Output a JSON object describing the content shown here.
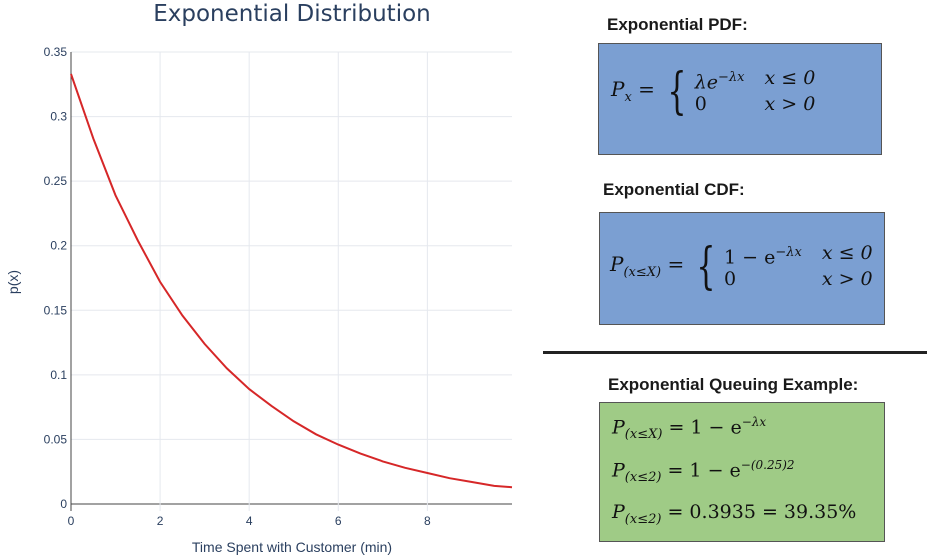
{
  "chart_data": {
    "type": "line",
    "title": "Exponential Distribution",
    "xlabel": "Time Spent with Customer (min)",
    "ylabel": "p(x)",
    "xlim": [
      0,
      9.9
    ],
    "ylim": [
      0,
      0.35
    ],
    "x_ticks": [
      "0",
      "2",
      "4",
      "6",
      "8"
    ],
    "y_ticks": [
      "0",
      "0.05",
      "0.1",
      "0.15",
      "0.2",
      "0.25",
      "0.3",
      "0.35"
    ],
    "grid": true,
    "series": [
      {
        "color": "#d62728",
        "x": [
          0,
          0.5,
          1,
          1.5,
          2,
          2.5,
          3,
          3.5,
          4,
          4.5,
          5,
          5.5,
          6,
          6.5,
          7,
          7.5,
          8,
          8.5,
          9,
          9.5,
          9.9
        ],
        "y": [
          0.333,
          0.283,
          0.239,
          0.204,
          0.172,
          0.146,
          0.124,
          0.105,
          0.089,
          0.076,
          0.064,
          0.054,
          0.046,
          0.039,
          0.033,
          0.028,
          0.024,
          0.02,
          0.017,
          0.014,
          0.013
        ]
      }
    ]
  },
  "panels": {
    "pdf": {
      "heading": "Exponential PDF:",
      "lhs": "P",
      "lhs_sub": "x",
      "row1_expr": "λe",
      "row1_sup": "−λx",
      "row1_cond": "x ≤ 0",
      "row2_expr": "0",
      "row2_cond": "x > 0"
    },
    "cdf": {
      "heading": "Exponential CDF:",
      "lhs": "P",
      "lhs_sub": "(x≤X)",
      "row1_expr": "1  −  e",
      "row1_sup": "−λx",
      "row1_cond": "x ≤ 0",
      "row2_expr": "0",
      "row2_cond": "x > 0"
    },
    "queuing": {
      "heading": "Exponential Queuing Example:",
      "line1_lhs": "P",
      "line1_sub": "(x≤X)",
      "line1_rhs": " = 1  −  e",
      "line1_sup": "−λx",
      "line2_lhs": "P",
      "line2_sub": "(x≤2)",
      "line2_rhs": " = 1  −  e",
      "line2_sup": "−(0.25)2",
      "line3_lhs": "P",
      "line3_sub": "(x≤2)",
      "line3_rhs": " = 0.3935 = 39.35%"
    }
  }
}
